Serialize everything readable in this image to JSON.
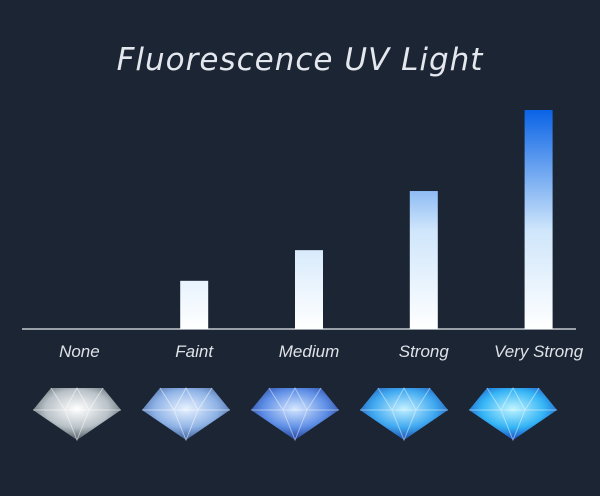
{
  "chart_data": {
    "type": "bar",
    "title": "Fluorescence UV Light",
    "categories": [
      "None",
      "Faint",
      "Medium",
      "Strong",
      "Very Strong"
    ],
    "values": [
      0,
      22,
      36,
      63,
      100
    ],
    "color": "#0a63e6"
  }
}
